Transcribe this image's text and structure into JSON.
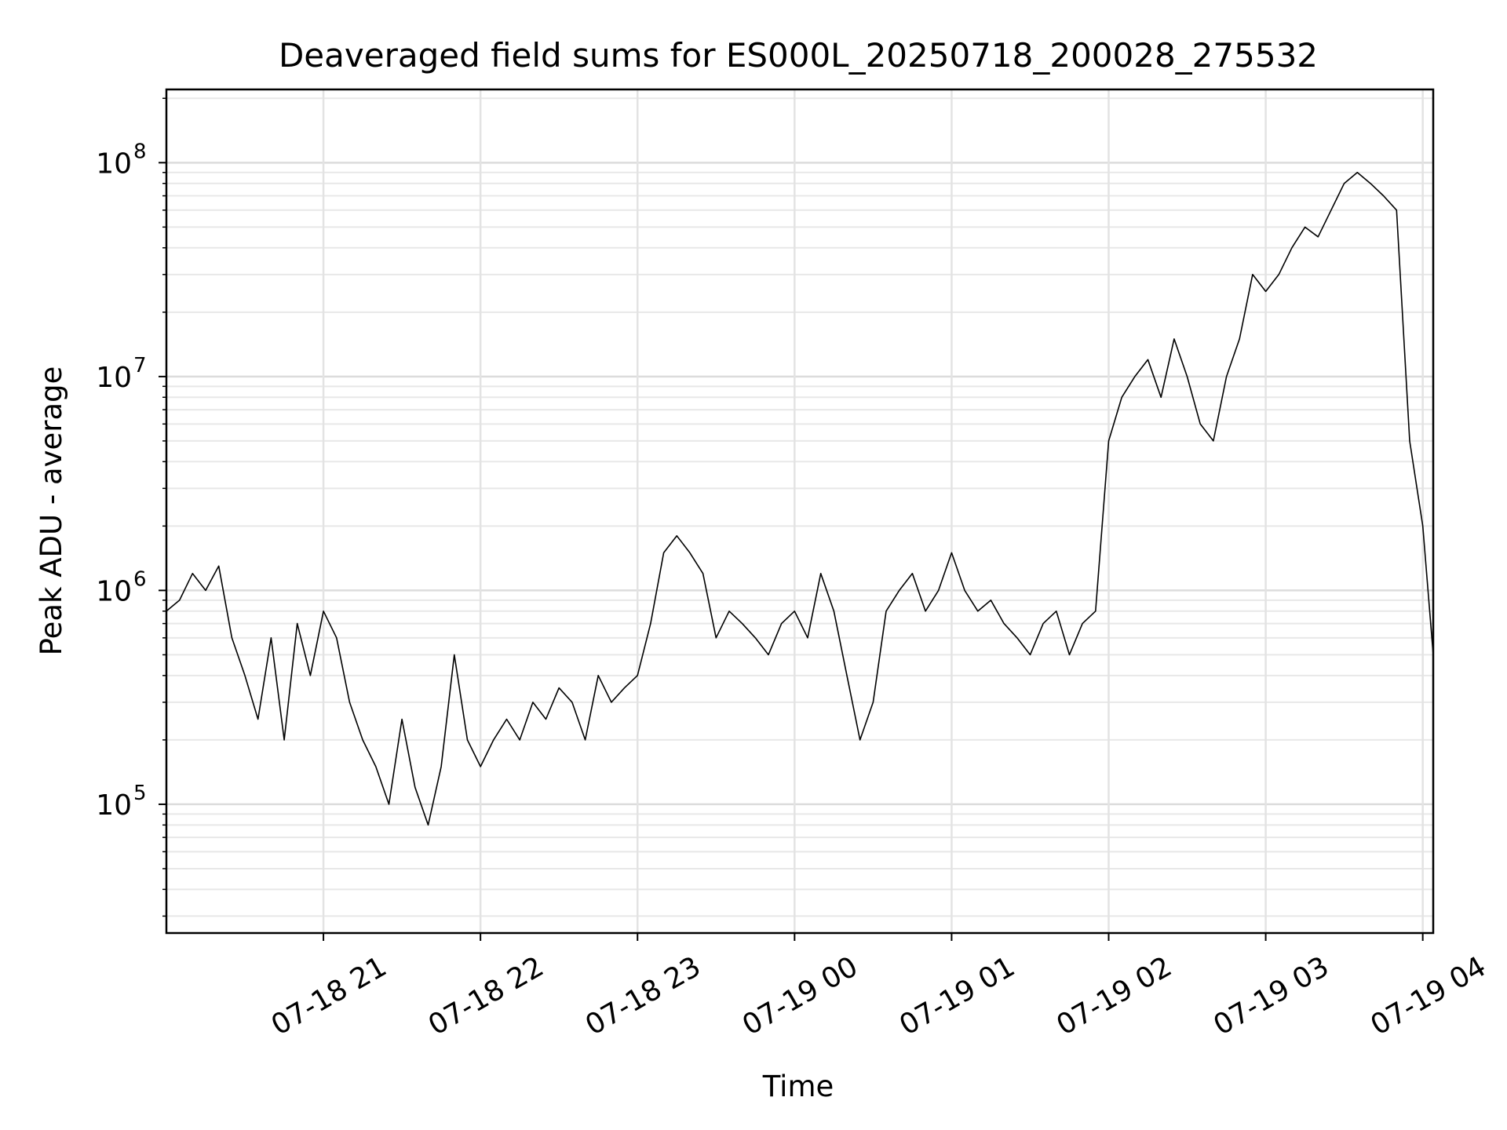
{
  "chart_data": {
    "type": "line",
    "title": "Deaveraged field sums for ES000L_20250718_200028_275532",
    "xlabel": "Time",
    "ylabel": "Peak ADU - average",
    "y_scale": "log",
    "ylim": [
      25000,
      220000000
    ],
    "xlim": [
      "2025-07-18 20:00",
      "2025-07-19 04:04"
    ],
    "grid": true,
    "line_color": "#000000",
    "x_ticks": [
      {
        "t": "2025-07-18 21:00",
        "label": "07-18 21"
      },
      {
        "t": "2025-07-18 22:00",
        "label": "07-18 22"
      },
      {
        "t": "2025-07-18 23:00",
        "label": "07-18 23"
      },
      {
        "t": "2025-07-19 00:00",
        "label": "07-19 00"
      },
      {
        "t": "2025-07-19 01:00",
        "label": "07-19 01"
      },
      {
        "t": "2025-07-19 02:00",
        "label": "07-19 02"
      },
      {
        "t": "2025-07-19 03:00",
        "label": "07-19 03"
      },
      {
        "t": "2025-07-19 04:00",
        "label": "07-19 04"
      }
    ],
    "y_ticks": [
      {
        "value": 100000,
        "base": "10",
        "exp": "5"
      },
      {
        "value": 1000000,
        "base": "10",
        "exp": "6"
      },
      {
        "value": 10000000,
        "base": "10",
        "exp": "7"
      },
      {
        "value": 100000000,
        "base": "10",
        "exp": "8"
      }
    ],
    "series": [
      {
        "x": [
          "2025-07-18 20:00",
          "2025-07-18 20:05",
          "2025-07-18 20:10",
          "2025-07-18 20:15",
          "2025-07-18 20:20",
          "2025-07-18 20:25",
          "2025-07-18 20:30",
          "2025-07-18 20:35",
          "2025-07-18 20:40",
          "2025-07-18 20:45",
          "2025-07-18 20:50",
          "2025-07-18 20:55",
          "2025-07-18 21:00",
          "2025-07-18 21:05",
          "2025-07-18 21:10",
          "2025-07-18 21:15",
          "2025-07-18 21:20",
          "2025-07-18 21:25",
          "2025-07-18 21:30",
          "2025-07-18 21:35",
          "2025-07-18 21:40",
          "2025-07-18 21:45",
          "2025-07-18 21:50",
          "2025-07-18 21:55",
          "2025-07-18 22:00",
          "2025-07-18 22:05",
          "2025-07-18 22:10",
          "2025-07-18 22:15",
          "2025-07-18 22:20",
          "2025-07-18 22:25",
          "2025-07-18 22:30",
          "2025-07-18 22:35",
          "2025-07-18 22:40",
          "2025-07-18 22:45",
          "2025-07-18 22:50",
          "2025-07-18 22:55",
          "2025-07-18 23:00",
          "2025-07-18 23:05",
          "2025-07-18 23:10",
          "2025-07-18 23:15",
          "2025-07-18 23:20",
          "2025-07-18 23:25",
          "2025-07-18 23:30",
          "2025-07-18 23:35",
          "2025-07-18 23:40",
          "2025-07-18 23:45",
          "2025-07-18 23:50",
          "2025-07-18 23:55",
          "2025-07-19 00:00",
          "2025-07-19 00:05",
          "2025-07-19 00:10",
          "2025-07-19 00:15",
          "2025-07-19 00:20",
          "2025-07-19 00:25",
          "2025-07-19 00:30",
          "2025-07-19 00:35",
          "2025-07-19 00:40",
          "2025-07-19 00:45",
          "2025-07-19 00:50",
          "2025-07-19 00:55",
          "2025-07-19 01:00",
          "2025-07-19 01:05",
          "2025-07-19 01:10",
          "2025-07-19 01:15",
          "2025-07-19 01:20",
          "2025-07-19 01:25",
          "2025-07-19 01:30",
          "2025-07-19 01:35",
          "2025-07-19 01:40",
          "2025-07-19 01:45",
          "2025-07-19 01:50",
          "2025-07-19 01:55",
          "2025-07-19 02:00",
          "2025-07-19 02:05",
          "2025-07-19 02:10",
          "2025-07-19 02:15",
          "2025-07-19 02:20",
          "2025-07-19 02:25",
          "2025-07-19 02:30",
          "2025-07-19 02:35",
          "2025-07-19 02:40",
          "2025-07-19 02:45",
          "2025-07-19 02:50",
          "2025-07-19 02:55",
          "2025-07-19 03:00",
          "2025-07-19 03:05",
          "2025-07-19 03:10",
          "2025-07-19 03:15",
          "2025-07-19 03:20",
          "2025-07-19 03:25",
          "2025-07-19 03:30",
          "2025-07-19 03:35",
          "2025-07-19 03:40",
          "2025-07-19 03:45",
          "2025-07-19 03:50",
          "2025-07-19 03:55",
          "2025-07-19 04:00",
          "2025-07-19 04:04"
        ],
        "y": [
          800000,
          900000,
          1200000,
          1000000,
          1300000,
          600000,
          400000,
          250000,
          600000,
          200000,
          700000,
          400000,
          800000,
          600000,
          300000,
          200000,
          150000,
          100000,
          250000,
          120000,
          80000,
          150000,
          500000,
          200000,
          150000,
          200000,
          250000,
          200000,
          300000,
          250000,
          350000,
          300000,
          200000,
          400000,
          300000,
          350000,
          400000,
          700000,
          1500000,
          1800000,
          1500000,
          1200000,
          600000,
          800000,
          700000,
          600000,
          500000,
          700000,
          800000,
          600000,
          1200000,
          800000,
          400000,
          200000,
          300000,
          800000,
          1000000,
          1200000,
          800000,
          1000000,
          1500000,
          1000000,
          800000,
          900000,
          700000,
          600000,
          500000,
          700000,
          800000,
          500000,
          700000,
          800000,
          5000000,
          8000000,
          10000000,
          12000000,
          8000000,
          15000000,
          10000000,
          6000000,
          5000000,
          10000000,
          15000000,
          30000000,
          25000000,
          30000000,
          40000000,
          50000000,
          45000000,
          60000000,
          80000000,
          90000000,
          80000000,
          70000000,
          60000000,
          5000000,
          2000000,
          500000
        ]
      }
    ]
  }
}
